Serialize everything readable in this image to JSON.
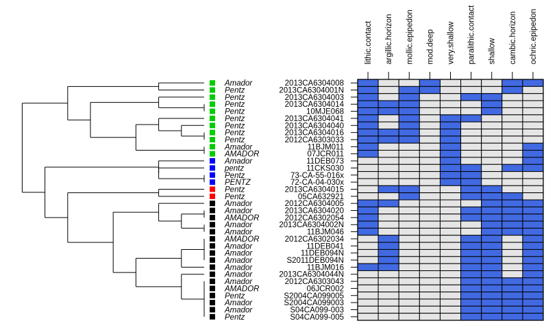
{
  "chart_data": {
    "type": "heatmap",
    "title": "",
    "columns": [
      "lithic.contact",
      "argillic.horizon",
      "mollic.epipedon",
      "mod.deep",
      "very.shallow",
      "paralithic.contact",
      "shallow",
      "cambic.horizon",
      "ochric.epipedon"
    ],
    "rows": [
      {
        "id": "2013CA6304008",
        "group": "Amador",
        "cluster": 1,
        "values": [
          1,
          0,
          0,
          1,
          0,
          0,
          0,
          1,
          1
        ]
      },
      {
        "id": "2013CA6304001N",
        "group": "Pentz",
        "cluster": 1,
        "values": [
          1,
          0,
          1,
          1,
          0,
          0,
          0,
          1,
          0
        ]
      },
      {
        "id": "2013CA6304003",
        "group": "Pentz",
        "cluster": 1,
        "values": [
          1,
          0,
          1,
          0,
          0,
          1,
          1,
          0,
          0
        ]
      },
      {
        "id": "2013CA6304014",
        "group": "Pentz",
        "cluster": 1,
        "values": [
          1,
          1,
          1,
          0,
          0,
          0,
          1,
          0,
          0
        ]
      },
      {
        "id": "10MJE068",
        "group": "Pentz",
        "cluster": 1,
        "values": [
          1,
          1,
          1,
          0,
          0,
          0,
          1,
          0,
          0
        ]
      },
      {
        "id": "2013CA6304041",
        "group": "Pentz",
        "cluster": 1,
        "values": [
          1,
          0,
          1,
          0,
          1,
          1,
          0,
          0,
          0
        ]
      },
      {
        "id": "2013CA6304040",
        "group": "Pentz",
        "cluster": 1,
        "values": [
          1,
          0,
          1,
          0,
          1,
          0,
          0,
          0,
          0
        ]
      },
      {
        "id": "2013CA6304016",
        "group": "Pentz",
        "cluster": 1,
        "values": [
          1,
          1,
          1,
          0,
          1,
          0,
          0,
          0,
          0
        ]
      },
      {
        "id": "2012CA6303033",
        "group": "Pentz",
        "cluster": 1,
        "values": [
          1,
          1,
          1,
          0,
          1,
          0,
          0,
          0,
          0
        ]
      },
      {
        "id": "11BJM011",
        "group": "Amador",
        "cluster": 1,
        "values": [
          1,
          0,
          0,
          0,
          1,
          0,
          0,
          0,
          1
        ]
      },
      {
        "id": "07JCR011",
        "group": "AMADOR",
        "cluster": 1,
        "values": [
          1,
          0,
          0,
          0,
          1,
          0,
          0,
          0,
          1
        ]
      },
      {
        "id": "11DEB073",
        "group": "Amador",
        "cluster": 2,
        "values": [
          0,
          0,
          0,
          0,
          1,
          0,
          0,
          0,
          1
        ]
      },
      {
        "id": "11CKS030",
        "group": "pentz",
        "cluster": 2,
        "values": [
          0,
          0,
          0,
          0,
          1,
          1,
          0,
          1,
          1
        ]
      },
      {
        "id": "73-CA-55-016x",
        "group": "Pentz",
        "cluster": 2,
        "values": [
          0,
          0,
          0,
          0,
          1,
          1,
          0,
          0,
          0
        ]
      },
      {
        "id": "72-CA-04-030x",
        "group": "PENTZ",
        "cluster": 2,
        "values": [
          0,
          0,
          0,
          0,
          1,
          1,
          0,
          0,
          0
        ]
      },
      {
        "id": "2013CA6304015",
        "group": "Pentz",
        "cluster": 3,
        "values": [
          0,
          1,
          1,
          0,
          0,
          1,
          1,
          0,
          0
        ]
      },
      {
        "id": "05CA632921",
        "group": "Pentz",
        "cluster": 3,
        "values": [
          0,
          0,
          1,
          0,
          0,
          1,
          1,
          1,
          0
        ]
      },
      {
        "id": "2012CA6304005",
        "group": "Amador",
        "cluster": 4,
        "values": [
          1,
          1,
          0,
          0,
          0,
          0,
          1,
          1,
          1
        ]
      },
      {
        "id": "2013CA6304020",
        "group": "Amador",
        "cluster": 4,
        "values": [
          1,
          0,
          0,
          0,
          0,
          1,
          1,
          1,
          1
        ]
      },
      {
        "id": "2012CA6302054",
        "group": "AMADOR",
        "cluster": 4,
        "values": [
          1,
          0,
          0,
          0,
          0,
          1,
          1,
          1,
          1
        ]
      },
      {
        "id": "2013CA6304002N",
        "group": "Amador",
        "cluster": 4,
        "values": [
          1,
          0,
          0,
          0,
          0,
          0,
          1,
          1,
          1
        ]
      },
      {
        "id": "11BJM046",
        "group": "Amador",
        "cluster": 4,
        "values": [
          1,
          0,
          0,
          0,
          0,
          0,
          1,
          1,
          1
        ]
      },
      {
        "id": "2012CA6302034",
        "group": "AMADOR",
        "cluster": 4,
        "values": [
          0,
          1,
          0,
          0,
          0,
          1,
          1,
          0,
          1
        ]
      },
      {
        "id": "11DEB041",
        "group": "Amador",
        "cluster": 4,
        "values": [
          0,
          1,
          0,
          0,
          0,
          1,
          1,
          0,
          1
        ]
      },
      {
        "id": "11DEB094N",
        "group": "Amador",
        "cluster": 4,
        "values": [
          0,
          1,
          0,
          0,
          0,
          1,
          1,
          0,
          1
        ]
      },
      {
        "id": "S2011DEB094N",
        "group": "Amador",
        "cluster": 4,
        "values": [
          0,
          1,
          0,
          0,
          0,
          1,
          1,
          0,
          1
        ]
      },
      {
        "id": "11BJM016",
        "group": "Amador",
        "cluster": 4,
        "values": [
          1,
          1,
          0,
          0,
          0,
          1,
          1,
          0,
          1
        ]
      },
      {
        "id": "2013CA6304044N",
        "group": "Amador",
        "cluster": 4,
        "values": [
          0,
          0,
          0,
          0,
          0,
          1,
          1,
          0,
          1
        ]
      },
      {
        "id": "2012CA6303043",
        "group": "Amador",
        "cluster": 4,
        "values": [
          0,
          0,
          0,
          0,
          0,
          1,
          1,
          1,
          1
        ]
      },
      {
        "id": "06JCR002",
        "group": "AMADOR",
        "cluster": 4,
        "values": [
          0,
          0,
          0,
          0,
          0,
          1,
          1,
          1,
          1
        ]
      },
      {
        "id": "S2004CA099005",
        "group": "Pentz",
        "cluster": 4,
        "values": [
          0,
          0,
          0,
          0,
          0,
          1,
          1,
          1,
          1
        ]
      },
      {
        "id": "S2004CA099003",
        "group": "Amador",
        "cluster": 4,
        "values": [
          0,
          0,
          0,
          0,
          0,
          1,
          1,
          1,
          1
        ]
      },
      {
        "id": "S04CA099-003",
        "group": "Amador",
        "cluster": 4,
        "values": [
          0,
          0,
          0,
          0,
          0,
          1,
          1,
          1,
          1
        ]
      },
      {
        "id": "S04CA099-005",
        "group": "Pentz",
        "cluster": 4,
        "values": [
          0,
          0,
          0,
          0,
          0,
          1,
          1,
          1,
          1
        ]
      }
    ],
    "cluster_colors": {
      "1": "#00CC00",
      "2": "#0000FF",
      "3": "#FF0000",
      "4": "#000000"
    },
    "colors": {
      "present": "#4169E1",
      "absent": "#E5E5E5",
      "grid": "#000000"
    },
    "dendrogram": {
      "h": 8,
      "c": [
        {
          "h": 6,
          "c": [
            {
              "h": 2,
              "c": [
                0,
                1
              ]
            },
            {
              "h": 5,
              "c": [
                {
                  "h": 2,
                  "c": [
                    2,
                    {
                      "h": 0,
                      "c": [
                        3,
                        4
                      ]
                    }
                  ]
                },
                {
                  "h": 3,
                  "c": [
                    {
                      "h": 2,
                      "c": [
                        5,
                        {
                          "h": 1,
                          "c": [
                            6,
                            {
                              "h": 0,
                              "c": [
                                7,
                                8
                              ]
                            }
                          ]
                        }
                      ]
                    },
                    {
                      "h": 0,
                      "c": [
                        9,
                        10
                      ]
                    }
                  ]
                }
              ]
            }
          ]
        },
        {
          "h": 7,
          "c": [
            {
              "h": 2,
              "c": [
                11,
                {
                  "h": 2,
                  "c": [
                    12,
                    {
                      "h": 0,
                      "c": [
                        13,
                        14
                      ]
                    }
                  ]
                }
              ]
            },
            {
              "h": 6,
              "c": [
                {
                  "h": 2,
                  "c": [
                    15,
                    16
                  ]
                },
                {
                  "h": 4,
                  "c": [
                    {
                      "h": 2,
                      "c": [
                        17,
                        {
                          "h": 1,
                          "c": [
                            {
                              "h": 0,
                              "c": [
                                18,
                                19
                              ]
                            },
                            {
                              "h": 0,
                              "c": [
                                20,
                                21
                              ]
                            }
                          ]
                        }
                      ]
                    },
                    {
                      "h": 3,
                      "c": [
                        {
                          "h": 1,
                          "c": [
                            {
                              "h": 0,
                              "c": [
                                22,
                                23,
                                24,
                                25
                              ]
                            },
                            26
                          ]
                        },
                        {
                          "h": 1,
                          "c": [
                            27,
                            {
                              "h": 0,
                              "c": [
                                28,
                                29,
                                30,
                                31,
                                32,
                                33
                              ]
                            }
                          ]
                        }
                      ]
                    }
                  ]
                }
              ]
            }
          ]
        }
      ]
    }
  }
}
